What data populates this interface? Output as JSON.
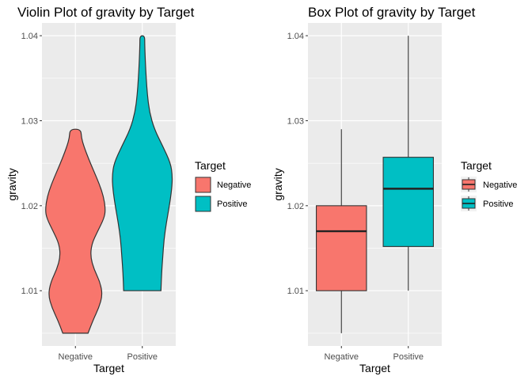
{
  "chart_data": [
    {
      "type": "violin",
      "title": "Violin Plot of gravity by Target",
      "xlabel": "Target",
      "ylabel": "gravity",
      "categories": [
        "Negative",
        "Positive"
      ],
      "ylim": [
        1.0035,
        1.0415
      ],
      "yticks": [
        "1.01",
        "1.02",
        "1.03",
        "1.04"
      ],
      "ytick_values": [
        1.01,
        1.02,
        1.03,
        1.04
      ],
      "grid": true,
      "legend": {
        "title": "Target",
        "position": "right",
        "entries": [
          {
            "label": "Negative",
            "color": "#F8766D"
          },
          {
            "label": "Positive",
            "color": "#00BFC4"
          }
        ]
      },
      "series": [
        {
          "name": "Negative",
          "color": "#F8766D",
          "min": 1.005,
          "max": 1.029,
          "density": [
            [
              1.005,
              0.42
            ],
            [
              1.0065,
              0.58
            ],
            [
              1.008,
              0.78
            ],
            [
              1.0095,
              0.9
            ],
            [
              1.011,
              0.82
            ],
            [
              1.0125,
              0.62
            ],
            [
              1.014,
              0.5
            ],
            [
              1.0155,
              0.54
            ],
            [
              1.017,
              0.74
            ],
            [
              1.0185,
              0.95
            ],
            [
              1.0195,
              1.0
            ],
            [
              1.021,
              0.94
            ],
            [
              1.0225,
              0.8
            ],
            [
              1.024,
              0.62
            ],
            [
              1.0255,
              0.44
            ],
            [
              1.027,
              0.28
            ],
            [
              1.028,
              0.2
            ],
            [
              1.029,
              0.18
            ]
          ]
        },
        {
          "name": "Positive",
          "color": "#00BFC4",
          "min": 1.01,
          "max": 1.04,
          "density": [
            [
              1.01,
              0.62
            ],
            [
              1.012,
              0.64
            ],
            [
              1.014,
              0.68
            ],
            [
              1.016,
              0.72
            ],
            [
              1.018,
              0.8
            ],
            [
              1.02,
              0.9
            ],
            [
              1.022,
              0.98
            ],
            [
              1.0235,
              1.0
            ],
            [
              1.025,
              0.94
            ],
            [
              1.027,
              0.68
            ],
            [
              1.029,
              0.4
            ],
            [
              1.031,
              0.24
            ],
            [
              1.033,
              0.17
            ],
            [
              1.035,
              0.13
            ],
            [
              1.037,
              0.1
            ],
            [
              1.039,
              0.08
            ],
            [
              1.04,
              0.08
            ]
          ]
        }
      ]
    },
    {
      "type": "box",
      "title": "Box Plot of gravity by Target",
      "xlabel": "Target",
      "ylabel": "gravity",
      "categories": [
        "Negative",
        "Positive"
      ],
      "ylim": [
        1.0035,
        1.0415
      ],
      "yticks": [
        "1.01",
        "1.02",
        "1.03",
        "1.04"
      ],
      "ytick_values": [
        1.01,
        1.02,
        1.03,
        1.04
      ],
      "grid": true,
      "legend": {
        "title": "Target",
        "position": "right",
        "entries": [
          {
            "label": "Negative",
            "color": "#F8766D"
          },
          {
            "label": "Positive",
            "color": "#00BFC4"
          }
        ]
      },
      "series": [
        {
          "name": "Negative",
          "color": "#F8766D",
          "min": 1.005,
          "q1": 1.01,
          "median": 1.017,
          "q3": 1.02,
          "max": 1.029
        },
        {
          "name": "Positive",
          "color": "#00BFC4",
          "min": 1.01,
          "q1": 1.0152,
          "median": 1.022,
          "q3": 1.0257,
          "max": 1.04
        }
      ]
    }
  ]
}
